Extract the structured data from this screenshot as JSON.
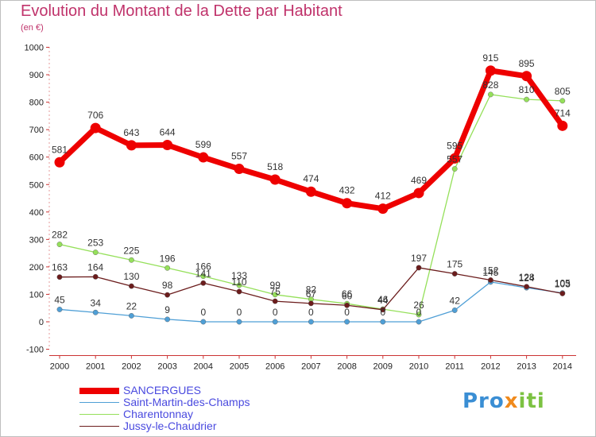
{
  "title": "Evolution du Montant de la Dette par Habitant",
  "unit": "(en €)",
  "logo": {
    "text": "Proxiti",
    "colors": [
      "#3a8ed4",
      "#f08a1c",
      "#7cc242"
    ]
  },
  "chart_data": {
    "type": "line",
    "title": "Evolution du Montant de la Dette par Habitant",
    "ylabel": "(en €)",
    "xlabel": "",
    "x": [
      "2000",
      "2001",
      "2002",
      "2003",
      "2004",
      "2005",
      "2006",
      "2007",
      "2008",
      "2009",
      "2010",
      "2011",
      "2012",
      "2013",
      "2014"
    ],
    "yticks": [
      "-100",
      "0",
      "100",
      "200",
      "300",
      "400",
      "500",
      "600",
      "700",
      "800",
      "900",
      "1000"
    ],
    "ylim": [
      -100,
      1000
    ],
    "grid": false,
    "legend_position": "bottom-left",
    "series": [
      {
        "name": "SANCERGUES",
        "color": "#ee0000",
        "values": [
          581,
          706,
          643,
          644,
          599,
          557,
          518,
          474,
          432,
          412,
          469,
          595,
          915,
          895,
          714
        ],
        "labels": [
          "581",
          "706",
          "643",
          "644",
          "599",
          "557",
          "518",
          "474",
          "432",
          "412",
          "469",
          "595",
          "915",
          "895",
          "714"
        ]
      },
      {
        "name": "Saint-Martin-des-Champs",
        "color": "#4f9fd6",
        "values": [
          45,
          34,
          22,
          9,
          0,
          0,
          0,
          0,
          0,
          0,
          0,
          42,
          145,
          124,
          105
        ],
        "labels": [
          "45",
          "34",
          "22",
          "9",
          "0",
          "0",
          "0",
          "0",
          "0",
          "0",
          "0",
          "42",
          "145",
          "124",
          "105"
        ]
      },
      {
        "name": "Charentonnay",
        "color": "#95e05a",
        "values": [
          282,
          253,
          225,
          196,
          166,
          133,
          99,
          82,
          66,
          46,
          26,
          557,
          828,
          810,
          805
        ],
        "labels": [
          "282",
          "253",
          "225",
          "196",
          "166",
          "133",
          "99",
          "82",
          "66",
          "46",
          "26",
          "557",
          "828",
          "810",
          "805"
        ]
      },
      {
        "name": "Jussy-le-Chaudrier",
        "color": "#6b1c1c",
        "values": [
          163,
          164,
          130,
          98,
          141,
          110,
          75,
          67,
          60,
          44,
          197,
          175,
          152,
          128,
          103
        ],
        "labels": [
          "163",
          "164",
          "130",
          "98",
          "141",
          "110",
          "75",
          "67",
          "60",
          "44",
          "197",
          "175",
          "152",
          "128",
          "103"
        ]
      }
    ]
  }
}
